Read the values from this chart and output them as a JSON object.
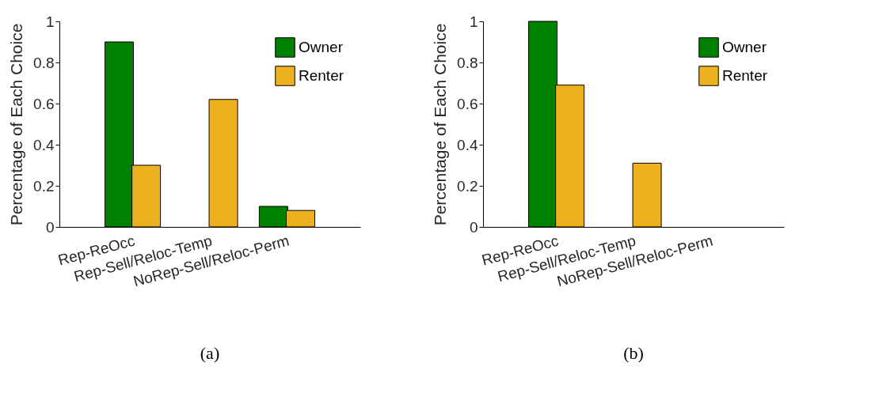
{
  "chart_data": [
    {
      "type": "bar",
      "categories": [
        "Rep-ReOcc",
        "Rep-Sell/Reloc-Temp",
        "NoRep-Sell/Reloc-Perm"
      ],
      "ylabel": "Percentage of Each Choice",
      "ylim": [
        0,
        1
      ],
      "yticks": [
        0,
        0.2,
        0.4,
        0.6,
        0.8,
        1
      ],
      "legend": "top right",
      "annotations": [
        "(a)"
      ],
      "series": [
        {
          "name": "Owner",
          "color": "#008000",
          "values": [
            0.9,
            0,
            0.1
          ]
        },
        {
          "name": "Renter",
          "color": "#edb120",
          "values": [
            0.3,
            0.62,
            0.08
          ]
        }
      ]
    },
    {
      "type": "bar",
      "categories": [
        "Rep-ReOcc",
        "Rep-Sell/Reloc-Temp",
        "NoRep-Sell/Reloc-Perm"
      ],
      "ylabel": "Percentage of Each Choice",
      "ylim": [
        0,
        1
      ],
      "yticks": [
        0,
        0.2,
        0.4,
        0.6,
        0.8,
        1
      ],
      "legend": "top right",
      "annotations": [
        "(b)"
      ],
      "series": [
        {
          "name": "Owner",
          "color": "#008000",
          "values": [
            1,
            0,
            0
          ]
        },
        {
          "name": "Renter",
          "color": "#edb120",
          "values": [
            0.69,
            0.31,
            0
          ]
        }
      ]
    }
  ]
}
